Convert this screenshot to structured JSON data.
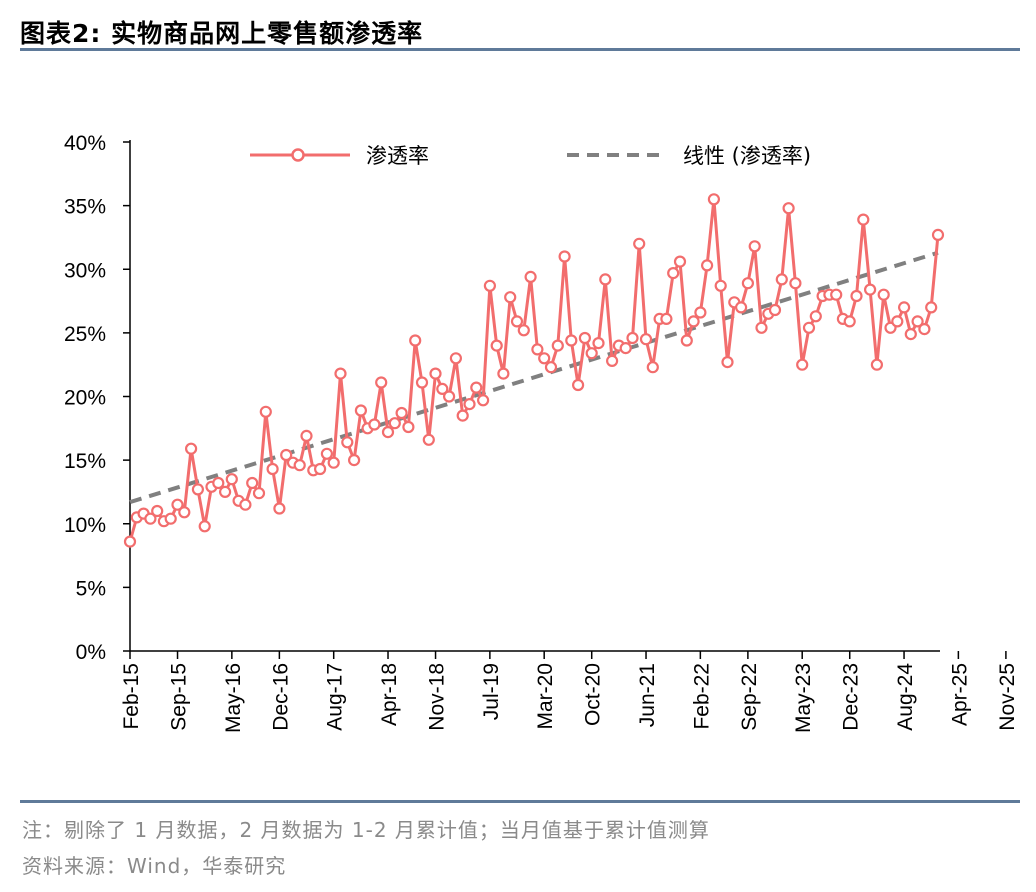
{
  "header": {
    "title": "图表2:   实物商品网上零售额渗透率"
  },
  "footer": {
    "note": "注：剔除了 1 月数据，2 月数据为 1-2 月累计值；当月值基于累计值测算",
    "source": "资料来源：Wind，华泰研究"
  },
  "colors": {
    "series": "#f26d6d",
    "trend": "#808080",
    "rule": "#5f7a99"
  },
  "chart_data": {
    "type": "line",
    "title": "",
    "xlabel": "",
    "ylabel": "",
    "ylim": [
      0,
      40
    ],
    "y_ticks": [
      "0%",
      "5%",
      "10%",
      "15%",
      "20%",
      "25%",
      "30%",
      "35%",
      "40%"
    ],
    "x_tick_labels": [
      "Feb-15",
      "Sep-15",
      "May-16",
      "Dec-16",
      "Aug-17",
      "Apr-18",
      "Nov-18",
      "Jul-19",
      "Mar-20",
      "Oct-20",
      "Jun-21",
      "Feb-22",
      "Sep-22",
      "May-23",
      "Dec-23",
      "Aug-24",
      "Apr-25",
      "Nov-25"
    ],
    "x_tick_index": [
      0,
      7,
      15,
      22,
      30,
      38,
      45,
      53,
      61,
      68,
      76,
      84,
      91,
      99,
      106,
      114,
      122,
      129
    ],
    "legend": {
      "position": "top",
      "series_label": "渗透率",
      "trend_label": "线性 (渗透率)"
    },
    "series": [
      {
        "name": "渗透率",
        "marker": "circle",
        "values": [
          8.6,
          10.5,
          10.8,
          10.4,
          11.0,
          10.2,
          10.4,
          11.5,
          10.9,
          15.9,
          12.7,
          9.8,
          12.9,
          13.2,
          12.5,
          13.5,
          11.8,
          11.5,
          13.2,
          12.4,
          18.8,
          14.3,
          11.2,
          15.4,
          14.8,
          14.6,
          16.9,
          14.2,
          14.3,
          15.5,
          14.8,
          21.8,
          16.4,
          15.0,
          18.9,
          17.5,
          17.8,
          21.1,
          17.2,
          17.9,
          18.7,
          17.6,
          24.4,
          21.1,
          16.6,
          21.8,
          20.6,
          20.0,
          23.0,
          18.5,
          19.4,
          20.7,
          19.7,
          28.7,
          24.0,
          21.8,
          27.8,
          25.9,
          25.2,
          29.4,
          23.7,
          23.0,
          22.3,
          24.0,
          31.0,
          24.4,
          20.9,
          24.6,
          23.4,
          24.2,
          29.2,
          22.8,
          24.0,
          23.8,
          24.6,
          32.0,
          24.5,
          22.3,
          26.1,
          26.1,
          29.7,
          30.6,
          24.4,
          25.9,
          26.6,
          30.3,
          35.5,
          28.7,
          22.7,
          27.4,
          27.0,
          28.9,
          31.8,
          25.4,
          26.5,
          26.8,
          29.2,
          34.8,
          28.9,
          22.5,
          25.4,
          26.3,
          27.9,
          28.0,
          28.0,
          26.1,
          25.9,
          27.9,
          33.9,
          28.4,
          22.5,
          28.0,
          25.4,
          25.9,
          27.0,
          24.9,
          25.9,
          25.3,
          27.0,
          32.7
        ]
      },
      {
        "name": "线性 (渗透率)",
        "style": "dashed",
        "trend_start": 11.7,
        "trend_end": 31.3
      }
    ]
  }
}
